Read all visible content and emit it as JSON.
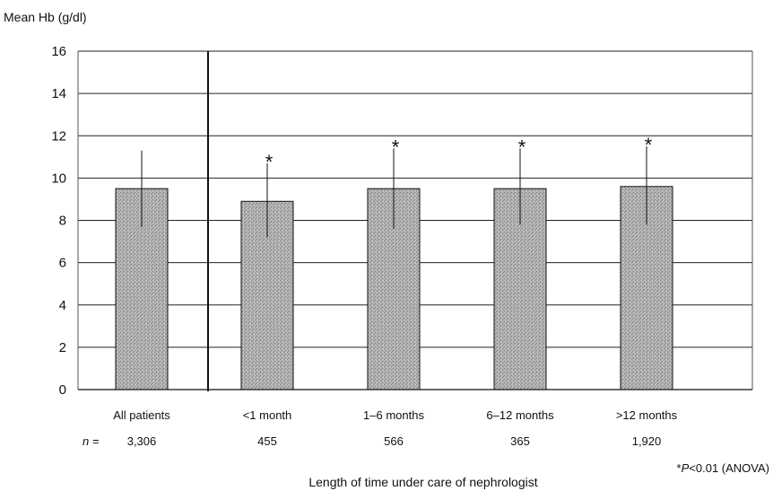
{
  "chart_data": {
    "type": "bar",
    "ylabel": "Mean Hb (g/dl)",
    "xlabel": "Length of time under care of nephrologist",
    "ylim": [
      0,
      16
    ],
    "yticks": [
      0,
      2,
      4,
      6,
      8,
      10,
      12,
      14,
      16
    ],
    "grid": true,
    "categories": [
      "All patients",
      "<1 month",
      "1–6 months",
      "6–12 months",
      ">12 months"
    ],
    "values": [
      9.5,
      8.9,
      9.5,
      9.5,
      9.6
    ],
    "error_upper": [
      11.3,
      10.7,
      11.4,
      11.4,
      11.5
    ],
    "error_lower": [
      7.7,
      7.2,
      7.6,
      7.8,
      7.8
    ],
    "significance_marker": "*",
    "significant": [
      false,
      true,
      true,
      true,
      true
    ],
    "n_label": "n =",
    "n_values": [
      "3,306",
      "455",
      "566",
      "365",
      "1,920"
    ],
    "footnote": {
      "marker": "*",
      "p": "P",
      "text": "<0.01 (ANOVA)"
    },
    "bar_color": "#9a9a9a"
  }
}
